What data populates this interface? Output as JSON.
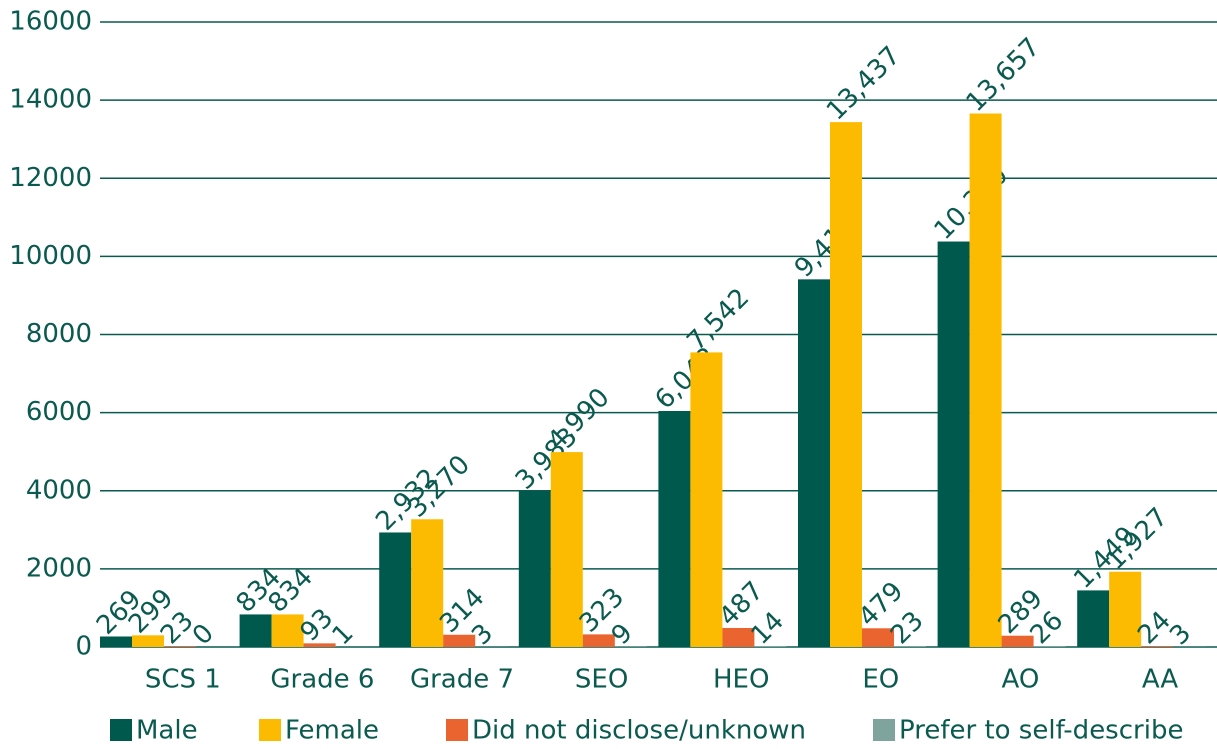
{
  "chart_data": {
    "type": "bar",
    "categories": [
      "SCS 1",
      "Grade 6",
      "Grade 7",
      "SEO",
      "HEO",
      "EO",
      "AO",
      "AA"
    ],
    "series": [
      {
        "name": "Male",
        "color": "#00594d",
        "values": [
          269,
          834,
          2932,
          3983,
          6042,
          9412,
          10380,
          1449
        ],
        "value_labels": [
          "269",
          "834",
          "2,932",
          "3,983",
          "6,042",
          "9,412",
          "10,380",
          "1,449"
        ]
      },
      {
        "name": "Female",
        "color": "#fdbb00",
        "values": [
          299,
          834,
          3270,
          4990,
          7542,
          13437,
          13657,
          1927
        ],
        "value_labels": [
          "299",
          "834",
          "3,270",
          "4,990",
          "7,542",
          "13,437",
          "13,657",
          "1,927"
        ]
      },
      {
        "name": "Did not disclose/unknown",
        "color": "#ea6430",
        "values": [
          23,
          93,
          314,
          323,
          487,
          479,
          289,
          24
        ],
        "value_labels": [
          "23",
          "93",
          "314",
          "323",
          "487",
          "479",
          "289",
          "24"
        ]
      },
      {
        "name": "Prefer to self-describe",
        "color": "#7fa39d",
        "values": [
          0,
          1,
          3,
          9,
          14,
          23,
          26,
          3
        ],
        "value_labels": [
          "0",
          "1",
          "3",
          "9",
          "14",
          "23",
          "26",
          "3"
        ]
      }
    ],
    "ylim": [
      0,
      16000
    ],
    "yticks": [
      0,
      2000,
      4000,
      6000,
      8000,
      10000,
      12000,
      14000,
      16000
    ],
    "grid": true,
    "legend": "bottom"
  }
}
